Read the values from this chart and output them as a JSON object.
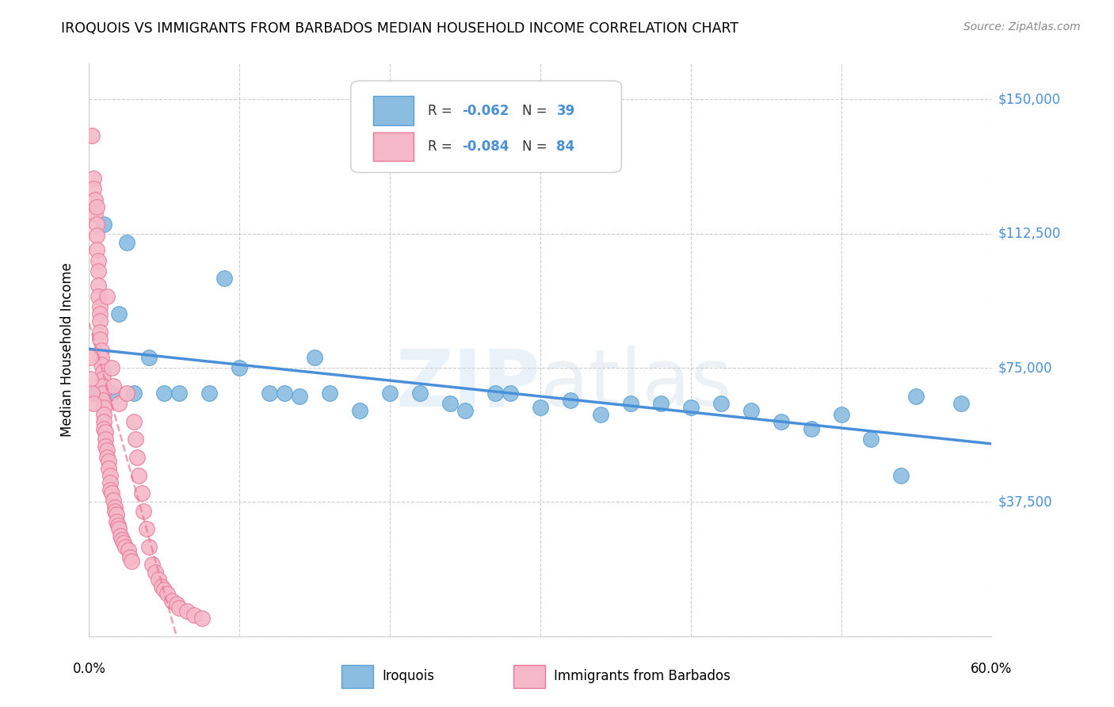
{
  "title": "IROQUOIS VS IMMIGRANTS FROM BARBADOS MEDIAN HOUSEHOLD INCOME CORRELATION CHART",
  "source": "Source: ZipAtlas.com",
  "ylabel": "Median Household Income",
  "yticks": [
    0,
    37500,
    75000,
    112500,
    150000
  ],
  "ytick_labels": [
    "",
    "$37,500",
    "$75,000",
    "$112,500",
    "$150,000"
  ],
  "xmin": 0.0,
  "xmax": 0.6,
  "ymin": 0,
  "ymax": 160000,
  "watermark": "ZIPatlas",
  "blue_color": "#8bbde0",
  "pink_color": "#f5b8c8",
  "blue_edge": "#5a9fd4",
  "pink_edge": "#e87898",
  "blue_line": "#4a90d9",
  "pink_line": "#e87898",
  "iroquois_x": [
    0.005,
    0.01,
    0.015,
    0.02,
    0.025,
    0.03,
    0.04,
    0.05,
    0.06,
    0.08,
    0.09,
    0.1,
    0.12,
    0.13,
    0.14,
    0.15,
    0.16,
    0.18,
    0.2,
    0.22,
    0.24,
    0.25,
    0.27,
    0.28,
    0.3,
    0.32,
    0.34,
    0.36,
    0.38,
    0.4,
    0.42,
    0.44,
    0.46,
    0.48,
    0.5,
    0.52,
    0.54,
    0.55,
    0.58
  ],
  "iroquois_y": [
    68000,
    115000,
    68000,
    90000,
    110000,
    68000,
    78000,
    68000,
    68000,
    68000,
    100000,
    75000,
    68000,
    68000,
    67000,
    78000,
    68000,
    63000,
    68000,
    68000,
    65000,
    63000,
    68000,
    68000,
    64000,
    66000,
    62000,
    65000,
    65000,
    64000,
    65000,
    63000,
    60000,
    58000,
    62000,
    55000,
    45000,
    67000,
    65000
  ],
  "barbados_x": [
    0.002,
    0.003,
    0.003,
    0.004,
    0.004,
    0.005,
    0.005,
    0.005,
    0.005,
    0.006,
    0.006,
    0.006,
    0.006,
    0.007,
    0.007,
    0.007,
    0.007,
    0.007,
    0.008,
    0.008,
    0.008,
    0.009,
    0.009,
    0.009,
    0.009,
    0.009,
    0.01,
    0.01,
    0.01,
    0.01,
    0.011,
    0.011,
    0.011,
    0.012,
    0.012,
    0.012,
    0.013,
    0.013,
    0.014,
    0.014,
    0.014,
    0.015,
    0.015,
    0.016,
    0.016,
    0.017,
    0.017,
    0.018,
    0.018,
    0.019,
    0.02,
    0.02,
    0.021,
    0.022,
    0.023,
    0.024,
    0.025,
    0.026,
    0.027,
    0.028,
    0.03,
    0.031,
    0.032,
    0.033,
    0.035,
    0.036,
    0.038,
    0.04,
    0.042,
    0.044,
    0.046,
    0.048,
    0.05,
    0.052,
    0.055,
    0.058,
    0.06,
    0.065,
    0.07,
    0.001,
    0.001,
    0.002,
    0.003,
    0.075
  ],
  "barbados_y": [
    140000,
    128000,
    125000,
    122000,
    118000,
    120000,
    115000,
    112000,
    108000,
    105000,
    102000,
    98000,
    95000,
    92000,
    90000,
    88000,
    85000,
    83000,
    80000,
    78000,
    76000,
    74000,
    72000,
    70000,
    68000,
    66000,
    64000,
    62000,
    60000,
    58000,
    57000,
    55000,
    53000,
    52000,
    50000,
    95000,
    49000,
    47000,
    45000,
    43000,
    41000,
    75000,
    40000,
    70000,
    38000,
    36000,
    35000,
    34000,
    32000,
    31000,
    65000,
    30000,
    28000,
    27000,
    26000,
    25000,
    68000,
    24000,
    22000,
    21000,
    60000,
    55000,
    50000,
    45000,
    40000,
    35000,
    30000,
    25000,
    20000,
    18000,
    16000,
    14000,
    13000,
    12000,
    10000,
    9000,
    8000,
    7000,
    6000,
    78000,
    72000,
    68000,
    65000,
    5000
  ]
}
